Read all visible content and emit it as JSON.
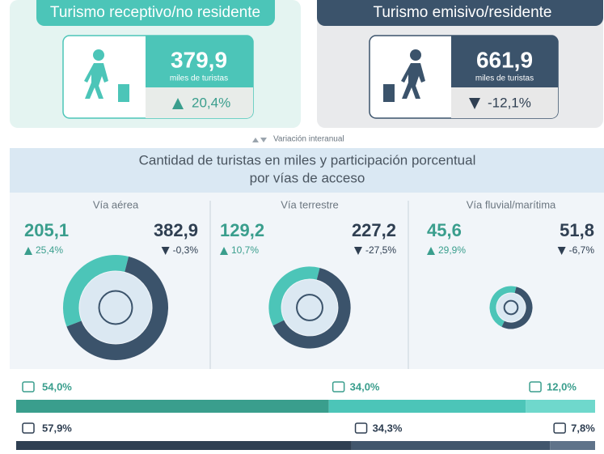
{
  "receptivo": {
    "title": "Turismo receptivo/no residente",
    "value": 379.9,
    "value_label": "379,9",
    "unit": "miles de turistas",
    "change": 20.4,
    "change_label": "20,4%"
  },
  "emisivo": {
    "title": "Turismo emisivo/residente",
    "value": 661.9,
    "value_label": "661,9",
    "unit": "miles de turistas",
    "change": -12.1,
    "change_label": "-12,1%"
  },
  "legend": "Variación interanual",
  "section_title": [
    "Cantidad de turistas en miles y participación porcentual",
    "por vías de acceso"
  ],
  "routes": [
    {
      "name": "Vía aérea",
      "values": [
        205.1,
        382.9
      ],
      "value_labels": [
        "205,1",
        "382,9"
      ],
      "changes": [
        25.4,
        -0.3
      ],
      "change_labels": [
        "25,4%",
        "-0,3%"
      ]
    },
    {
      "name": "Vía terrestre",
      "values": [
        129.2,
        227.2
      ],
      "value_labels": [
        "129,2",
        "227,2"
      ],
      "changes": [
        10.7,
        -27.5
      ],
      "change_labels": [
        "10,7%",
        "-27,5%"
      ]
    },
    {
      "name": "Vía fluvial/marítima",
      "values": [
        45.6,
        51.8
      ],
      "value_labels": [
        "45,6",
        "51,8"
      ],
      "changes": [
        29.9,
        -6.7
      ],
      "change_labels": [
        "29,9%",
        "-6,7%"
      ]
    }
  ],
  "shares": {
    "receptivo": {
      "values": [
        54.0,
        34.0,
        12.0
      ],
      "value_labels": [
        "54,0%",
        "34,0%",
        "12,0%"
      ]
    },
    "emisivo": {
      "values": [
        57.9,
        34.3,
        7.8
      ],
      "value_labels": [
        "57,9%",
        "34,3%",
        "7,8%"
      ]
    }
  }
}
